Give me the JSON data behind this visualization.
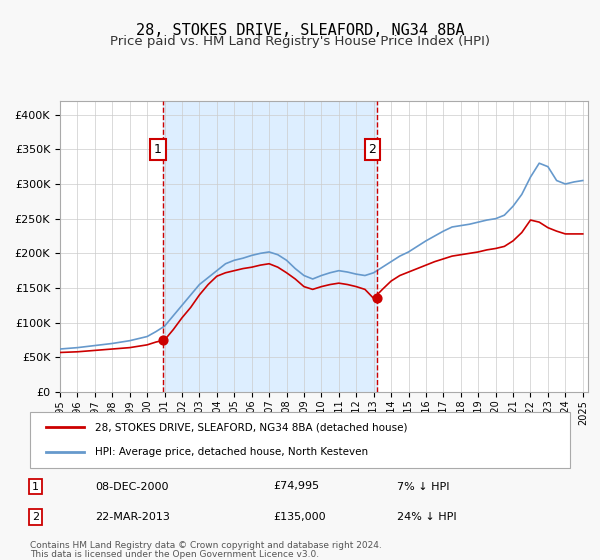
{
  "title": "28, STOKES DRIVE, SLEAFORD, NG34 8BA",
  "subtitle": "Price paid vs. HM Land Registry's House Price Index (HPI)",
  "legend_label_red": "28, STOKES DRIVE, SLEAFORD, NG34 8BA (detached house)",
  "legend_label_blue": "HPI: Average price, detached house, North Kesteven",
  "footer1": "Contains HM Land Registry data © Crown copyright and database right 2024.",
  "footer2": "This data is licensed under the Open Government Licence v3.0.",
  "transaction1_label": "1",
  "transaction1_date": "08-DEC-2000",
  "transaction1_price": "£74,995",
  "transaction1_hpi": "7% ↓ HPI",
  "transaction2_label": "2",
  "transaction2_date": "22-MAR-2013",
  "transaction2_price": "£135,000",
  "transaction2_hpi": "24% ↓ HPI",
  "transaction1_year": 2000.92,
  "transaction1_value": 74995,
  "transaction2_year": 2013.22,
  "transaction2_value": 135000,
  "vline1_year": 2000.92,
  "vline2_year": 2013.22,
  "color_red": "#cc0000",
  "color_blue": "#6699cc",
  "color_shading": "#ddeeff",
  "color_vline": "#cc0000",
  "ylim_min": 0,
  "ylim_max": 420000,
  "xlim_min": 1995.0,
  "xlim_max": 2025.3,
  "background_color": "#f8f8f8",
  "plot_background": "#ffffff",
  "grid_color": "#cccccc",
  "title_fontsize": 11,
  "subtitle_fontsize": 9.5
}
